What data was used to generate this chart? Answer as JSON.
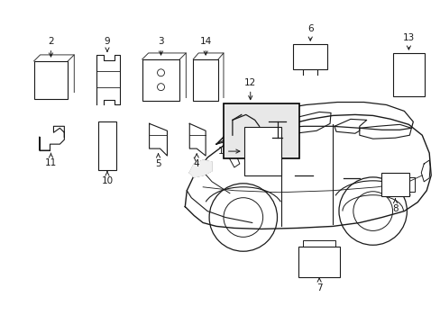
{
  "background_color": "#ffffff",
  "fig_width": 4.89,
  "fig_height": 3.6,
  "dpi": 100,
  "line_color": "#1a1a1a",
  "label_fontsize": 7.5
}
